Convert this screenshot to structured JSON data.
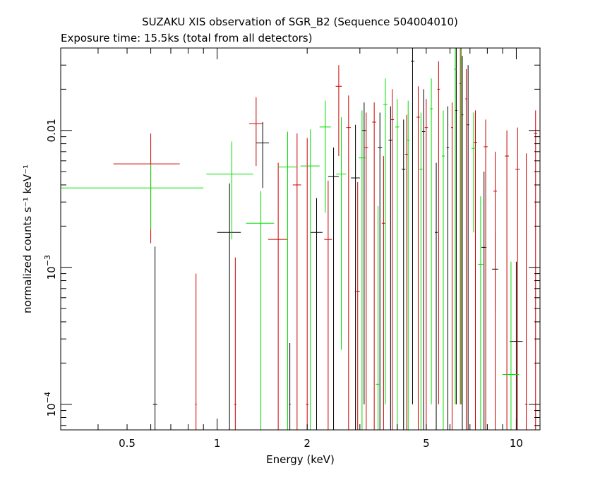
{
  "title": "SUZAKU XIS observation of SGR_B2 (Sequence 504004010)",
  "subtitle": "Exposure time: 15.5ks (total from all detectors)",
  "chart_data": {
    "type": "scatter",
    "style": "spectrum with x and y error bars",
    "xlabel": "Energy (keV)",
    "ylabel": "normalized counts s⁻¹ keV⁻¹",
    "xscale": "log",
    "yscale": "log",
    "xlim": [
      0.3,
      12
    ],
    "ylim": [
      6.5e-05,
      0.04
    ],
    "x_ticks": [
      {
        "value": 0.5,
        "label": "0.5"
      },
      {
        "value": 1,
        "label": "1"
      },
      {
        "value": 2,
        "label": "2"
      },
      {
        "value": 5,
        "label": "5"
      },
      {
        "value": 10,
        "label": "10"
      }
    ],
    "y_ticks": [
      {
        "value": 0.0001,
        "base": "10",
        "exp": "−4"
      },
      {
        "value": 0.001,
        "base": "10",
        "exp": "−3"
      },
      {
        "value": 0.01,
        "label": "0.01"
      }
    ],
    "grid": false,
    "legend": "none",
    "colors": {
      "black": "#000000",
      "red": "#cc0000",
      "green": "#00dd00"
    },
    "series": [
      {
        "color": "black",
        "points": [
          {
            "x": 0.62,
            "y": 0.0001,
            "xerr": 0.01,
            "ylo": 3e-05,
            "yhi": 0.00142
          },
          {
            "x": 1.1,
            "y": 0.0018,
            "xerr": 0.1,
            "ylo": 3e-05,
            "yhi": 0.0041
          },
          {
            "x": 1.42,
            "y": 0.0081,
            "xerr": 0.07,
            "ylo": 0.0038,
            "yhi": 0.0115
          },
          {
            "x": 1.75,
            "y": 0.0001,
            "xerr": 0.01,
            "ylo": 3e-05,
            "yhi": 0.00028
          },
          {
            "x": 2.15,
            "y": 0.0018,
            "xerr": 0.1,
            "ylo": 3e-05,
            "yhi": 0.0032
          },
          {
            "x": 2.45,
            "y": 0.0046,
            "xerr": 0.1,
            "ylo": 3e-05,
            "yhi": 0.0075
          },
          {
            "x": 2.9,
            "y": 0.0045,
            "xerr": 0.1,
            "ylo": 3e-05,
            "yhi": 0.011
          },
          {
            "x": 3.1,
            "y": 0.01,
            "xerr": 0.06,
            "ylo": 0.0001,
            "yhi": 0.016
          },
          {
            "x": 3.5,
            "y": 0.0075,
            "xerr": 0.06,
            "ylo": 3e-05,
            "yhi": 0.0135
          },
          {
            "x": 3.8,
            "y": 0.0085,
            "xerr": 0.06,
            "ylo": 3e-05,
            "yhi": 0.015
          },
          {
            "x": 4.2,
            "y": 0.0052,
            "xerr": 0.06,
            "ylo": 3e-05,
            "yhi": 0.012
          },
          {
            "x": 4.5,
            "y": 0.032,
            "xerr": 0.06,
            "ylo": 0.0001,
            "yhi": 0.04
          },
          {
            "x": 4.9,
            "y": 0.0098,
            "xerr": 0.06,
            "ylo": 3e-05,
            "yhi": 0.02
          },
          {
            "x": 5.4,
            "y": 0.0018,
            "xerr": 0.06,
            "ylo": 3e-05,
            "yhi": 0.0058
          },
          {
            "x": 5.9,
            "y": 0.0075,
            "xerr": 0.05,
            "ylo": 3e-05,
            "yhi": 0.015
          },
          {
            "x": 6.3,
            "y": 0.014,
            "xerr": 0.05,
            "ylo": 0.0001,
            "yhi": 0.04
          },
          {
            "x": 6.6,
            "y": 0.013,
            "xerr": 0.05,
            "ylo": 3e-05,
            "yhi": 0.035
          },
          {
            "x": 6.9,
            "y": 0.011,
            "xerr": 0.05,
            "ylo": 3e-05,
            "yhi": 0.03
          },
          {
            "x": 7.8,
            "y": 0.0014,
            "xerr": 0.15,
            "ylo": 3e-05,
            "yhi": 0.005
          },
          {
            "x": 8.5,
            "y": 0.00097,
            "xerr": 0.2,
            "ylo": 0.00048,
            "yhi": 0.0018
          },
          {
            "x": 10.0,
            "y": 0.000288,
            "xerr": 0.5,
            "ylo": 3e-05,
            "yhi": 0.0011
          }
        ]
      },
      {
        "color": "red",
        "points": [
          {
            "x": 0.6,
            "y": 0.0057,
            "xerr": 0.15,
            "ylo": 0.0015,
            "yhi": 0.0095
          },
          {
            "x": 0.85,
            "y": 0.0001,
            "xerr": 0.005,
            "ylo": 3e-05,
            "yhi": 0.0009
          },
          {
            "x": 1.15,
            "y": 0.0001,
            "xerr": 0.01,
            "ylo": 3e-05,
            "yhi": 0.00118
          },
          {
            "x": 1.35,
            "y": 0.0112,
            "xerr": 0.07,
            "ylo": 0.0055,
            "yhi": 0.0175
          },
          {
            "x": 1.6,
            "y": 0.0016,
            "xerr": 0.12,
            "ylo": 3e-05,
            "yhi": 0.0058
          },
          {
            "x": 1.85,
            "y": 0.004,
            "xerr": 0.06,
            "ylo": 3e-05,
            "yhi": 0.0095
          },
          {
            "x": 2.0,
            "y": 0.0001,
            "xerr": 0.02,
            "ylo": 3e-05,
            "yhi": 0.0088
          },
          {
            "x": 2.35,
            "y": 0.0016,
            "xerr": 0.07,
            "ylo": 3e-05,
            "yhi": 0.0043
          },
          {
            "x": 2.55,
            "y": 0.021,
            "xerr": 0.06,
            "ylo": 0.0065,
            "yhi": 0.03
          },
          {
            "x": 2.75,
            "y": 0.0105,
            "xerr": 0.05,
            "ylo": 3e-05,
            "yhi": 0.018
          },
          {
            "x": 2.95,
            "y": 0.00067,
            "xerr": 0.05,
            "ylo": 3e-05,
            "yhi": 0.0042
          },
          {
            "x": 3.15,
            "y": 0.0075,
            "xerr": 0.05,
            "ylo": 3e-05,
            "yhi": 0.0135
          },
          {
            "x": 3.35,
            "y": 0.0115,
            "xerr": 0.05,
            "ylo": 3e-05,
            "yhi": 0.016
          },
          {
            "x": 3.6,
            "y": 0.0021,
            "xerr": 0.05,
            "ylo": 3e-05,
            "yhi": 0.0065
          },
          {
            "x": 3.85,
            "y": 0.012,
            "xerr": 0.05,
            "ylo": 3e-05,
            "yhi": 0.02
          },
          {
            "x": 4.3,
            "y": 0.0067,
            "xerr": 0.06,
            "ylo": 3e-05,
            "yhi": 0.013
          },
          {
            "x": 4.7,
            "y": 0.0125,
            "xerr": 0.06,
            "ylo": 3e-05,
            "yhi": 0.021
          },
          {
            "x": 5.0,
            "y": 0.0105,
            "xerr": 0.06,
            "ylo": 3e-05,
            "yhi": 0.017
          },
          {
            "x": 5.5,
            "y": 0.02,
            "xerr": 0.06,
            "ylo": 0.0001,
            "yhi": 0.032
          },
          {
            "x": 6.1,
            "y": 0.0105,
            "xerr": 0.05,
            "ylo": 3e-05,
            "yhi": 0.016
          },
          {
            "x": 6.5,
            "y": 0.022,
            "xerr": 0.05,
            "ylo": 0.0001,
            "yhi": 0.04
          },
          {
            "x": 6.8,
            "y": 0.017,
            "xerr": 0.05,
            "ylo": 3e-05,
            "yhi": 0.028
          },
          {
            "x": 7.3,
            "y": 0.0082,
            "xerr": 0.1,
            "ylo": 3e-05,
            "yhi": 0.014
          },
          {
            "x": 7.9,
            "y": 0.0076,
            "xerr": 0.12,
            "ylo": 3e-05,
            "yhi": 0.012
          },
          {
            "x": 8.5,
            "y": 0.0036,
            "xerr": 0.12,
            "ylo": 3e-05,
            "yhi": 0.007
          },
          {
            "x": 9.3,
            "y": 0.0065,
            "xerr": 0.15,
            "ylo": 3e-05,
            "yhi": 0.01
          },
          {
            "x": 10.1,
            "y": 0.0052,
            "xerr": 0.18,
            "ylo": 3e-05,
            "yhi": 0.0105
          },
          {
            "x": 10.8,
            "y": 0.0001,
            "xerr": 0.1,
            "ylo": 3e-05,
            "yhi": 0.0068
          },
          {
            "x": 11.6,
            "y": 0.0095,
            "xerr": 0.15,
            "ylo": 3e-05,
            "yhi": 0.014
          }
        ]
      },
      {
        "color": "green",
        "points": [
          {
            "x": 0.6,
            "y": 0.0038,
            "xerr": 0.3,
            "ylo": 0.0019,
            "yhi": 0.0057
          },
          {
            "x": 1.12,
            "y": 0.0048,
            "xerr": 0.2,
            "ylo": 0.0016,
            "yhi": 0.0083
          },
          {
            "x": 1.4,
            "y": 0.0021,
            "xerr": 0.15,
            "ylo": 3e-05,
            "yhi": 0.0036
          },
          {
            "x": 1.72,
            "y": 0.0054,
            "xerr": 0.12,
            "ylo": 3e-05,
            "yhi": 0.0098
          },
          {
            "x": 2.05,
            "y": 0.0055,
            "xerr": 0.15,
            "ylo": 3e-05,
            "yhi": 0.0102
          },
          {
            "x": 2.3,
            "y": 0.0106,
            "xerr": 0.1,
            "ylo": 0.0025,
            "yhi": 0.0165
          },
          {
            "x": 2.6,
            "y": 0.0048,
            "xerr": 0.1,
            "ylo": 0.00025,
            "yhi": 0.0125
          },
          {
            "x": 3.05,
            "y": 0.0063,
            "xerr": 0.08,
            "ylo": 3e-05,
            "yhi": 0.014
          },
          {
            "x": 3.45,
            "y": 0.00014,
            "xerr": 0.06,
            "ylo": 3e-05,
            "yhi": 0.0028
          },
          {
            "x": 3.65,
            "y": 0.0155,
            "xerr": 0.06,
            "ylo": 0.0001,
            "yhi": 0.024
          },
          {
            "x": 4.0,
            "y": 0.0106,
            "xerr": 0.06,
            "ylo": 3e-05,
            "yhi": 0.017
          },
          {
            "x": 4.35,
            "y": 0.0085,
            "xerr": 0.06,
            "ylo": 3e-05,
            "yhi": 0.0165
          },
          {
            "x": 4.8,
            "y": 0.0052,
            "xerr": 0.06,
            "ylo": 3e-05,
            "yhi": 0.0135
          },
          {
            "x": 5.2,
            "y": 0.0144,
            "xerr": 0.06,
            "ylo": 0.0001,
            "yhi": 0.024
          },
          {
            "x": 5.7,
            "y": 0.0065,
            "xerr": 0.06,
            "ylo": 3e-05,
            "yhi": 0.014
          },
          {
            "x": 6.25,
            "y": 0.028,
            "xerr": 0.05,
            "ylo": 0.0001,
            "yhi": 0.04
          },
          {
            "x": 6.55,
            "y": 0.031,
            "xerr": 0.05,
            "ylo": 0.0001,
            "yhi": 0.04
          },
          {
            "x": 7.2,
            "y": 0.0074,
            "xerr": 0.12,
            "ylo": 0.0018,
            "yhi": 0.0135
          },
          {
            "x": 7.6,
            "y": 0.00105,
            "xerr": 0.15,
            "ylo": 3e-05,
            "yhi": 0.0033
          },
          {
            "x": 9.6,
            "y": 0.000165,
            "xerr": 0.6,
            "ylo": 3e-05,
            "yhi": 0.0011
          }
        ]
      }
    ]
  }
}
